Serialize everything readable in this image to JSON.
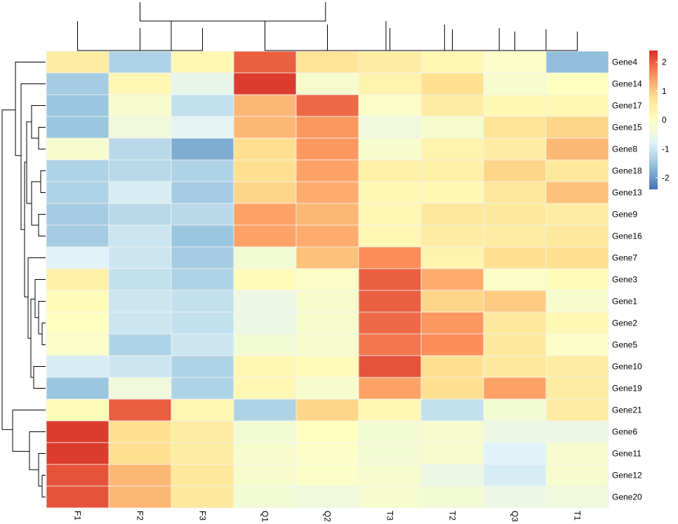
{
  "chart_data": {
    "type": "heatmap",
    "title": "",
    "columns": [
      "F1",
      "F2",
      "F3",
      "Q1",
      "Q2",
      "T3",
      "T2",
      "Q3",
      "T1"
    ],
    "rows": [
      "Gene4",
      "Gene14",
      "Gene17",
      "Gene15",
      "Gene8",
      "Gene18",
      "Gene13",
      "Gene9",
      "Gene16",
      "Gene7",
      "Gene3",
      "Gene1",
      "Gene2",
      "Gene5",
      "Gene10",
      "Gene19",
      "Gene21",
      "Gene6",
      "Gene11",
      "Gene12",
      "Gene20"
    ],
    "values": [
      [
        0.5,
        -1.3,
        0.2,
        2.0,
        0.7,
        0.5,
        0.2,
        -0.1,
        -1.6
      ],
      [
        -1.4,
        0.2,
        -0.6,
        2.3,
        -0.2,
        0.3,
        0.8,
        -0.2,
        0.0
      ],
      [
        -1.5,
        -0.2,
        -1.1,
        1.2,
        1.9,
        -0.1,
        0.5,
        0.2,
        0.2
      ],
      [
        -1.5,
        -0.4,
        -0.7,
        1.2,
        1.5,
        -0.4,
        -0.2,
        0.7,
        0.9
      ],
      [
        -0.2,
        -1.2,
        -1.8,
        0.8,
        1.5,
        -0.2,
        0.3,
        0.5,
        1.2
      ],
      [
        -1.3,
        -1.2,
        -1.3,
        0.8,
        1.4,
        0.4,
        0.4,
        0.9,
        0.6
      ],
      [
        -1.3,
        -0.9,
        -1.4,
        0.9,
        1.3,
        0.2,
        0.2,
        0.6,
        1.1
      ],
      [
        -1.4,
        -1.2,
        -1.2,
        1.4,
        1.2,
        0.2,
        0.6,
        0.6,
        0.5
      ],
      [
        -1.4,
        -1.0,
        -1.5,
        1.4,
        1.3,
        0.2,
        0.5,
        0.5,
        0.6
      ],
      [
        -0.8,
        -1.0,
        -1.4,
        -0.3,
        1.1,
        1.6,
        0.3,
        0.8,
        0.8
      ],
      [
        0.4,
        -1.1,
        -1.3,
        0.1,
        -0.1,
        2.0,
        1.3,
        -0.1,
        0.1
      ],
      [
        0.1,
        -1.0,
        -1.1,
        -0.5,
        -0.2,
        2.0,
        0.9,
        1.0,
        -0.2
      ],
      [
        0.0,
        -1.0,
        -1.1,
        -0.5,
        -0.2,
        1.9,
        1.5,
        0.6,
        0.2
      ],
      [
        -0.1,
        -1.3,
        -1.0,
        -0.3,
        -0.2,
        1.8,
        1.6,
        0.6,
        -0.1
      ],
      [
        -0.9,
        -1.0,
        -1.3,
        0.2,
        0.1,
        2.1,
        0.8,
        0.6,
        0.5
      ],
      [
        -1.5,
        -0.4,
        -1.3,
        0.2,
        -0.2,
        1.4,
        0.8,
        1.4,
        0.5
      ],
      [
        0.1,
        2.0,
        0.2,
        -1.3,
        0.9,
        0.2,
        -1.1,
        -0.3,
        0.5
      ],
      [
        2.3,
        0.8,
        0.5,
        -0.3,
        0.0,
        -0.3,
        -0.2,
        -0.5,
        -0.5
      ],
      [
        2.3,
        0.8,
        0.5,
        -0.2,
        -0.1,
        -0.3,
        -0.2,
        -0.8,
        -0.2
      ],
      [
        2.1,
        1.2,
        0.6,
        -0.2,
        -0.1,
        -0.2,
        -0.5,
        -0.9,
        -0.2
      ],
      [
        2.1,
        1.2,
        0.6,
        -0.3,
        -0.4,
        -0.2,
        -0.3,
        -0.5,
        -0.4
      ]
    ],
    "legend": {
      "position": "right",
      "min": -2.4,
      "max": 2.4,
      "ticks": [
        2,
        1,
        0,
        -1,
        -2
      ],
      "colors": [
        "#4575B4",
        "#91BFDB",
        "#E0F3F8",
        "#FFFFBF",
        "#FEE090",
        "#FC8D59",
        "#D73027"
      ]
    },
    "dendrograms": {
      "column_tree": "F1,F2,F3 vs Q1,Q2,T3,T2,Q3,T1",
      "row_tree": "Gene4..Gene19 vs Gene21,Gene6,Gene11,Gene12,Gene20"
    }
  }
}
